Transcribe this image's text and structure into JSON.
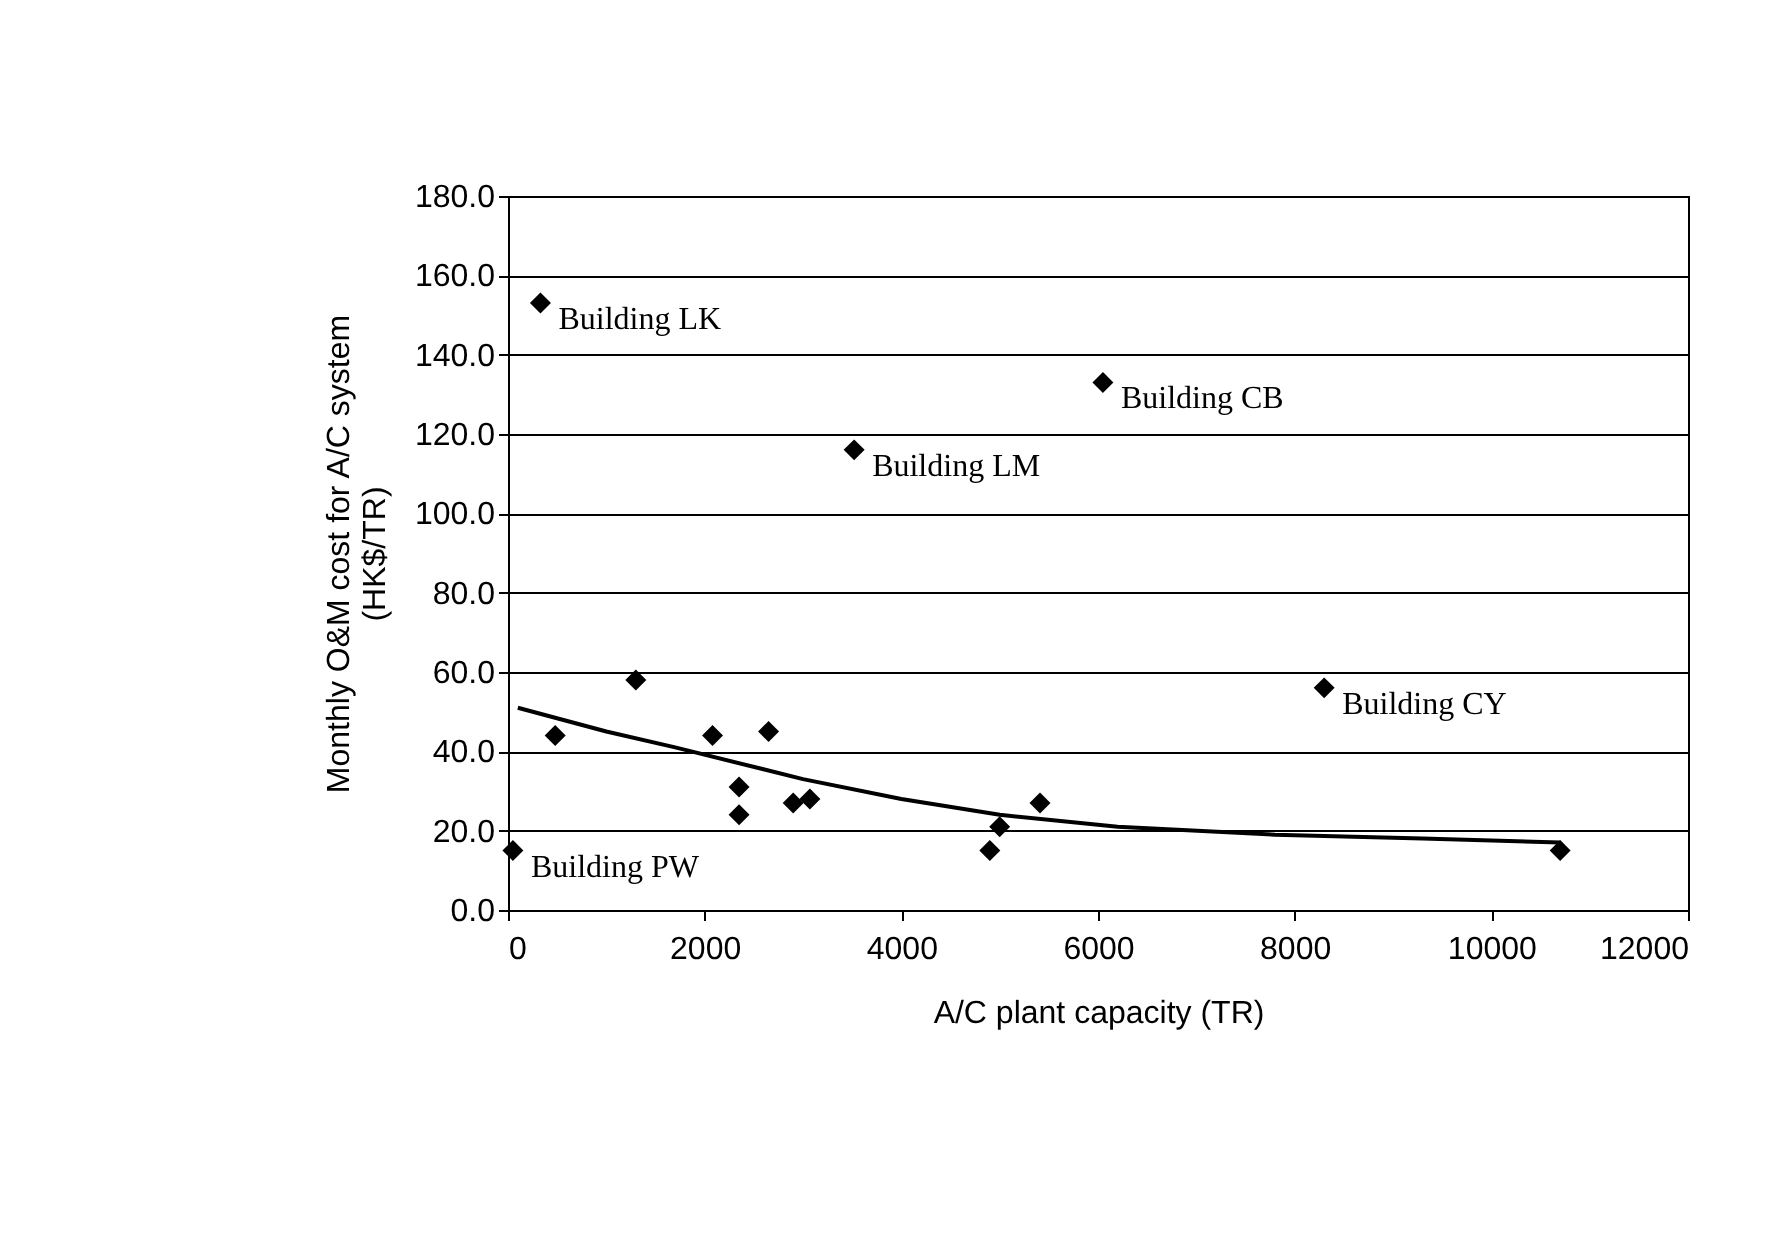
{
  "chart_data": {
    "type": "scatter",
    "xlabel": "A/C plant capacity (TR)",
    "ylabel": "Monthly O&M cost for A/C system\n(HK$/TR)",
    "xlim": [
      0,
      12000
    ],
    "xticks": [
      0,
      2000,
      4000,
      6000,
      8000,
      10000,
      12000
    ],
    "ylim": [
      0,
      180
    ],
    "yticks": [
      {
        "value": 0,
        "label": "0.0"
      },
      {
        "value": 20,
        "label": "20.0"
      },
      {
        "value": 40,
        "label": "40.0"
      },
      {
        "value": 60,
        "label": "60.0"
      },
      {
        "value": 80,
        "label": "80.0"
      },
      {
        "value": 100,
        "label": "100.0"
      },
      {
        "value": 120,
        "label": "120.0"
      },
      {
        "value": 140,
        "label": "140.0"
      },
      {
        "value": 160,
        "label": "160.0"
      },
      {
        "value": 180,
        "label": "180.0"
      }
    ],
    "grid": "y",
    "legend": false,
    "marker": "diamond",
    "series": [
      {
        "type": "scatter",
        "color": "#000000",
        "x": [
          50,
          330,
          480,
          1300,
          2080,
          2350,
          2350,
          2650,
          2900,
          3070,
          3520,
          4900,
          5000,
          5410,
          6050,
          8300,
          10700
        ],
        "values": [
          15,
          153,
          44,
          58,
          44,
          31,
          24,
          45,
          27,
          28,
          116,
          15,
          21,
          27,
          133,
          56,
          15
        ]
      },
      {
        "type": "line",
        "color": "#000000",
        "line_style": "solid",
        "marker": "none",
        "x": [
          100,
          1000,
          1700,
          3000,
          4000,
          5000,
          6200,
          7800,
          9300,
          10700
        ],
        "values": [
          51,
          45,
          41,
          33,
          28,
          24,
          21,
          19,
          18,
          17
        ]
      }
    ],
    "annotations": [
      {
        "text": "Building LK",
        "x": 330,
        "y": 153
      },
      {
        "text": "Building CB",
        "x": 6050,
        "y": 133
      },
      {
        "text": "Building LM",
        "x": 3520,
        "y": 116
      },
      {
        "text": "Building CY",
        "x": 8300,
        "y": 56
      },
      {
        "text": "Building PW",
        "x": 50,
        "y": 15
      }
    ]
  }
}
